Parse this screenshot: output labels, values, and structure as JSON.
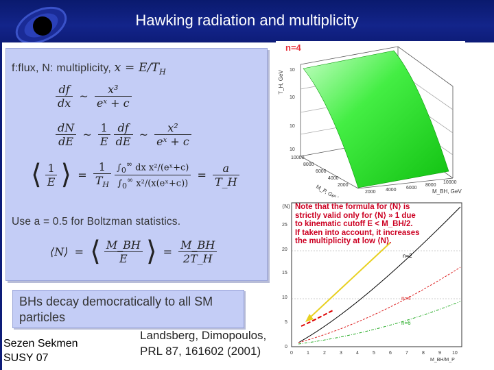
{
  "header": {
    "title": "Hawking radiation and multiplicity"
  },
  "panel": {
    "line1": "f:flux, N: multiplicity,",
    "eq1_num_left": "df",
    "eq1_den_left": "dx",
    "eq1_num_right": "x³",
    "eq1_den_right": "eˣ + c",
    "eq2_num1": "dN",
    "eq2_den1": "dE",
    "eq2_num2": "1",
    "eq2_den2": "E",
    "eq2_num3": "df",
    "eq2_den3": "dE",
    "eq2_num4": "x²",
    "eq2_den4": "eˣ + c",
    "boltzmann": "Use a = 0.5 for Boltzman statistics.",
    "eq3_tail_num": "a",
    "eq3_tail_den": "T_H",
    "eq4_num1": "M_BH",
    "eq4_den1": "E",
    "eq4_num2": "M_BH",
    "eq4_den2": "2T_H"
  },
  "bottom_box": {
    "text": "BHs decay democratically to all SM particles"
  },
  "footer": {
    "author_line1": "Sezen Sekmen",
    "author_line2": "SUSY 07",
    "ref_line1": "Landsberg, Dimopoulos,",
    "ref_line2": "PRL 87, 161602 (2001)"
  },
  "plot3d": {
    "label_n": "n=4",
    "z_axis": "T_H, GeV",
    "x_axis": "M_P, GeV",
    "y_axis": "M_BH, GeV",
    "z_ticks": [
      "10",
      "10",
      "10",
      "10"
    ],
    "x_ticks": [
      "10000",
      "8000",
      "6000",
      "4000",
      "2000"
    ],
    "y_ticks": [
      "2000",
      "4000",
      "6000",
      "8000",
      "10000"
    ]
  },
  "plot2d": {
    "note_lines": [
      "Note that the formula for ⟨N⟩ is",
      "strictly valid only for ⟨N⟩ » 1 due",
      "to kinematic cutoff E < M_BH/2.",
      "If taken into account, it increases",
      "the multiplicity at low ⟨N⟩."
    ],
    "curve_labels": [
      "n=2",
      "n=4",
      "n=6"
    ],
    "x_ticks": [
      "0",
      "1",
      "2",
      "3",
      "4",
      "5",
      "6",
      "7",
      "8",
      "9",
      "10"
    ],
    "y_ticks": [
      "0",
      "5",
      "10",
      "15",
      "20",
      "25"
    ],
    "x_label": "M_BH/M_P",
    "y_label": "⟨N⟩",
    "colors": {
      "n2": "#000000",
      "n4": "#dd2222",
      "n6": "#22aa22",
      "arrow": "#e8d020",
      "dashed": "#dd0000"
    }
  }
}
